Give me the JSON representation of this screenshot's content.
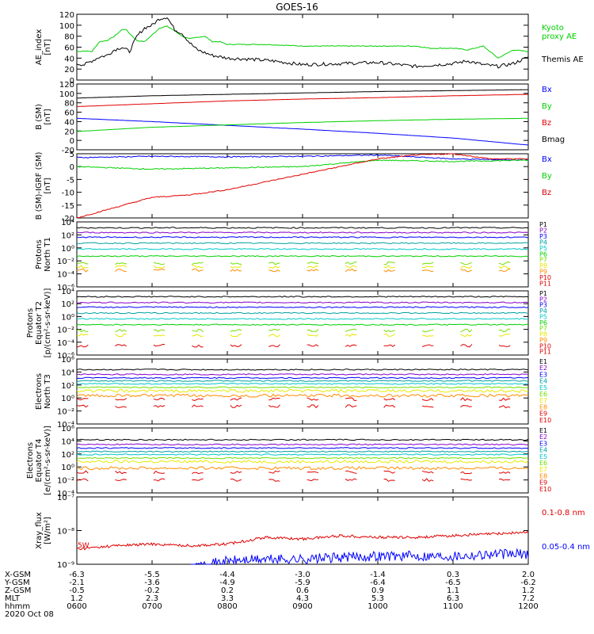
{
  "title": "GOES-16",
  "colors": {
    "black": "#000000",
    "green": "#00d000",
    "blue": "#0000ff",
    "red": "#e00000",
    "cyan": "#00c8c8",
    "yellow": "#e8e800",
    "orange": "#ff8c00",
    "purple": "#8800cc",
    "teal": "#00a0a0",
    "lime": "#70e000"
  },
  "chart_data": [
    {
      "id": "ae",
      "type": "line",
      "ylabel": "AE_index\n[nT]",
      "ylim": [
        0,
        120
      ],
      "yticks": [
        "0",
        "20",
        "40",
        "60",
        "80",
        "100",
        "120"
      ],
      "yscale": "linear",
      "series": [
        {
          "name": "Kyoto\nproxy AE",
          "color": "green",
          "x": [
            0.0,
            0.1,
            0.2,
            0.3,
            0.4,
            0.5,
            0.6,
            0.65,
            0.7,
            0.8,
            0.9,
            1.0,
            1.1,
            1.2,
            1.3,
            1.4,
            1.5,
            1.6,
            1.7,
            1.8,
            1.9,
            2.0,
            2.5,
            3.0,
            3.5,
            4.0,
            4.5,
            4.7,
            5.0,
            5.2,
            5.4,
            5.6,
            5.8,
            6.0
          ],
          "values": [
            52,
            53,
            52,
            70,
            72,
            80,
            92,
            93,
            85,
            72,
            70,
            82,
            95,
            98,
            90,
            80,
            75,
            78,
            80,
            70,
            70,
            65,
            65,
            62,
            62,
            62,
            62,
            58,
            58,
            55,
            62,
            40,
            55,
            52
          ]
        },
        {
          "name": "Themis AE",
          "color": "black",
          "x": [
            0.0,
            0.1,
            0.2,
            0.3,
            0.4,
            0.5,
            0.6,
            0.7,
            0.8,
            0.9,
            1.0,
            1.1,
            1.2,
            1.3,
            1.4,
            1.5,
            1.6,
            1.8,
            2.0,
            2.3,
            2.6,
            3.0,
            3.5,
            4.0,
            4.5,
            5.0,
            5.2,
            5.4,
            5.6,
            5.8,
            6.0
          ],
          "values": [
            30,
            28,
            35,
            42,
            45,
            55,
            60,
            52,
            80,
            95,
            100,
            112,
            115,
            92,
            85,
            68,
            55,
            45,
            40,
            38,
            35,
            28,
            30,
            32,
            25,
            30,
            35,
            28,
            25,
            30,
            42
          ]
        }
      ]
    },
    {
      "id": "bsm",
      "type": "line",
      "ylabel": "B (SM)\n[nT]",
      "ylim": [
        -20,
        120
      ],
      "yticks": [
        "-20",
        "0",
        "20",
        "40",
        "60",
        "80",
        "100",
        "120"
      ],
      "yscale": "linear",
      "series": [
        {
          "name": "Bx",
          "color": "blue",
          "x": [
            0,
            1,
            2,
            3,
            4,
            5,
            6
          ],
          "values": [
            47,
            40,
            32,
            24,
            15,
            5,
            -10
          ]
        },
        {
          "name": "By",
          "color": "green",
          "x": [
            0,
            1,
            2,
            3,
            4,
            5,
            6
          ],
          "values": [
            19,
            28,
            33,
            38,
            42,
            45,
            47
          ]
        },
        {
          "name": "Bz",
          "color": "red",
          "x": [
            0,
            1,
            2,
            3,
            4,
            5,
            6
          ],
          "values": [
            72,
            78,
            84,
            88,
            91,
            95,
            98
          ]
        },
        {
          "name": "Bmag",
          "color": "black",
          "x": [
            0,
            1,
            2,
            3,
            4,
            5,
            6
          ],
          "values": [
            90,
            95,
            98,
            101,
            104,
            106,
            108
          ]
        }
      ]
    },
    {
      "id": "bigrf",
      "type": "line",
      "ylabel": "B (SM)-IGRF (SM)\n[nT]",
      "ylim": [
        -20,
        5
      ],
      "yticks": [
        "-20",
        "-15",
        "-10",
        "-5",
        "0",
        "5"
      ],
      "yscale": "linear",
      "series": [
        {
          "name": "Bx",
          "color": "blue",
          "x": [
            0,
            1,
            2,
            3,
            4,
            5,
            6
          ],
          "values": [
            3.5,
            4,
            3.8,
            4,
            4.5,
            3,
            2.5
          ]
        },
        {
          "name": "By",
          "color": "green",
          "x": [
            0,
            1,
            2,
            3,
            4,
            5,
            6
          ],
          "values": [
            0,
            -1,
            -0.5,
            0,
            2.5,
            2,
            2.5
          ]
        },
        {
          "name": "Bz",
          "color": "red",
          "x": [
            0,
            0.5,
            1,
            1.5,
            2,
            2.5,
            3,
            3.5,
            4,
            4.5,
            5,
            5.5,
            6
          ],
          "values": [
            -20,
            -16,
            -12,
            -11,
            -9,
            -6,
            -3,
            0,
            3,
            4.5,
            5,
            3,
            3
          ]
        }
      ]
    },
    {
      "id": "pn",
      "type": "line",
      "ylabel": "Protons\nNorth T1",
      "yscale": "log",
      "ylim": [
        -7,
        4
      ],
      "yticks": [
        "10⁻⁶",
        "10⁻⁴",
        "10⁻²",
        "10⁰",
        "10²",
        "10⁴"
      ],
      "series": [
        {
          "name": "P1",
          "color": "black",
          "logvalue": 3.0
        },
        {
          "name": "P2",
          "color": "purple",
          "logvalue": 2.2
        },
        {
          "name": "P3",
          "color": "blue",
          "logvalue": 1.4
        },
        {
          "name": "P4",
          "color": "teal",
          "logvalue": 0.4
        },
        {
          "name": "P5",
          "color": "cyan",
          "logvalue": -0.6
        },
        {
          "name": "P6",
          "color": "green",
          "logvalue": -1.8
        },
        {
          "name": "P7",
          "color": "lime",
          "logvalue": -3.0
        },
        {
          "name": "P8",
          "color": "yellow",
          "logvalue": -3.6
        },
        {
          "name": "P9",
          "color": "orange",
          "logvalue": -4.2
        },
        {
          "name": "P10",
          "color": "red",
          "logvalue": null
        },
        {
          "name": "P11",
          "color": "red",
          "logvalue": null
        }
      ]
    },
    {
      "id": "pe",
      "type": "line",
      "ylabel": "Protons\nEquator T2\n[p/(cm²-s-sr-keV)]",
      "yscale": "log",
      "ylim": [
        -7,
        4
      ],
      "yticks": [
        "10⁻⁶",
        "10⁻⁴",
        "10⁻²",
        "10⁰",
        "10²",
        "10⁴"
      ],
      "series": [
        {
          "name": "P1",
          "color": "black",
          "logvalue": 3.0
        },
        {
          "name": "P2",
          "color": "purple",
          "logvalue": 2.0
        },
        {
          "name": "P3",
          "color": "blue",
          "logvalue": 1.2
        },
        {
          "name": "P4",
          "color": "teal",
          "logvalue": 0.2
        },
        {
          "name": "P5",
          "color": "cyan",
          "logvalue": -0.8
        },
        {
          "name": "P6",
          "color": "green",
          "logvalue": -1.8
        },
        {
          "name": "P7",
          "color": "lime",
          "logvalue": -2.8
        },
        {
          "name": "P8",
          "color": "yellow",
          "logvalue": -3.6
        },
        {
          "name": "P9",
          "color": "orange",
          "logvalue": null
        },
        {
          "name": "P10",
          "color": "red",
          "logvalue": -5.4
        },
        {
          "name": "P11",
          "color": "red",
          "logvalue": null
        }
      ]
    },
    {
      "id": "en",
      "type": "line",
      "ylabel": "Electrons\nNorth T3",
      "yscale": "log",
      "ylim": [
        -5,
        6
      ],
      "yticks": [
        "10⁻⁴",
        "10⁻²",
        "10⁰",
        "10²",
        "10⁴",
        "10⁶"
      ],
      "series": [
        {
          "name": "E1",
          "color": "black",
          "logvalue": 4.2
        },
        {
          "name": "E2",
          "color": "purple",
          "logvalue": 3.4
        },
        {
          "name": "E3",
          "color": "blue",
          "logvalue": 2.8
        },
        {
          "name": "E4",
          "color": "teal",
          "logvalue": 2.3
        },
        {
          "name": "E5",
          "color": "cyan",
          "logvalue": 1.8
        },
        {
          "name": "E6",
          "color": "lime",
          "logvalue": 1.2
        },
        {
          "name": "E7",
          "color": "yellow",
          "logvalue": 0.6
        },
        {
          "name": "E8",
          "color": "orange",
          "logvalue": -0.2
        },
        {
          "name": "E9",
          "color": "red",
          "logvalue": -0.8
        },
        {
          "name": "E10",
          "color": "red",
          "logvalue": -2.0
        }
      ]
    },
    {
      "id": "ee",
      "type": "line",
      "ylabel": "Electrons\nEquator T4\n[e/(cm²-s-sr-keV)]",
      "yscale": "log",
      "ylim": [
        -5,
        6
      ],
      "yticks": [
        "10⁻⁴",
        "10⁻²",
        "10⁰",
        "10²",
        "10⁴",
        "10⁶"
      ],
      "series": [
        {
          "name": "E1",
          "color": "black",
          "logvalue": 4.0
        },
        {
          "name": "E2",
          "color": "purple",
          "logvalue": 3.2
        },
        {
          "name": "E3",
          "color": "blue",
          "logvalue": 2.6
        },
        {
          "name": "E4",
          "color": "teal",
          "logvalue": 2.0
        },
        {
          "name": "E5",
          "color": "cyan",
          "logvalue": 1.5
        },
        {
          "name": "E6",
          "color": "lime",
          "logvalue": 0.9
        },
        {
          "name": "E7",
          "color": "yellow",
          "logvalue": 0.3
        },
        {
          "name": "E8",
          "color": "orange",
          "logvalue": -0.8
        },
        {
          "name": "E9",
          "color": "red",
          "logvalue": -1.5
        },
        {
          "name": "E10",
          "color": "red",
          "logvalue": -2.8
        }
      ]
    },
    {
      "id": "xray",
      "type": "line",
      "ylabel": "Xray_flux\n[W/m²]",
      "yscale": "log",
      "ylim": [
        -9,
        -7
      ],
      "yticks": [
        "10⁻⁹",
        "10⁻⁸",
        "10⁻⁷"
      ],
      "annotation": "5W",
      "series": [
        {
          "name": "0.1-0.8 nm",
          "color": "red",
          "x": [
            0,
            0.5,
            1,
            1.5,
            2,
            2.5,
            3,
            3.5,
            4,
            4.5,
            5,
            5.5,
            6
          ],
          "logvalues": [
            -8.55,
            -8.45,
            -8.4,
            -8.45,
            -8.4,
            -8.2,
            -8.25,
            -8.15,
            -8.2,
            -8.2,
            -8.15,
            -8.1,
            -8.05
          ]
        },
        {
          "name": "0.05-0.4 nm",
          "color": "blue",
          "x": [
            0,
            0.5,
            1,
            1.5,
            2,
            2.5,
            3,
            3.5,
            4,
            4.5,
            5,
            5.5,
            6
          ],
          "logvalues": [
            null,
            null,
            null,
            -9.1,
            -8.9,
            -8.85,
            -8.85,
            -8.8,
            -8.75,
            -8.75,
            -8.75,
            -8.7,
            -8.7
          ]
        }
      ]
    }
  ],
  "xaxis": {
    "row_labels": [
      "X-GSM",
      "Y-GSM",
      "Z-GSM",
      "MLT",
      "hhmm"
    ],
    "columns": [
      [
        "-6.3",
        "-2.1",
        "-0.5",
        "1.2",
        "0600"
      ],
      [
        "-5.5",
        "-3.6",
        "-0.2",
        "2.3",
        "0700"
      ],
      [
        "-4.4",
        "-4.9",
        "0.2",
        "3.3",
        "0800"
      ],
      [
        "-3.0",
        "-5.9",
        "0.6",
        "4.3",
        "0900"
      ],
      [
        "-1.4",
        "-6.4",
        "0.9",
        "5.3",
        "1000"
      ],
      [
        "0.3",
        "-6.5",
        "1.1",
        "6.3",
        "1100"
      ],
      [
        "2.0",
        "-6.2",
        "1.2",
        "7.2",
        "1200"
      ]
    ],
    "date": "2020 Oct 08"
  }
}
